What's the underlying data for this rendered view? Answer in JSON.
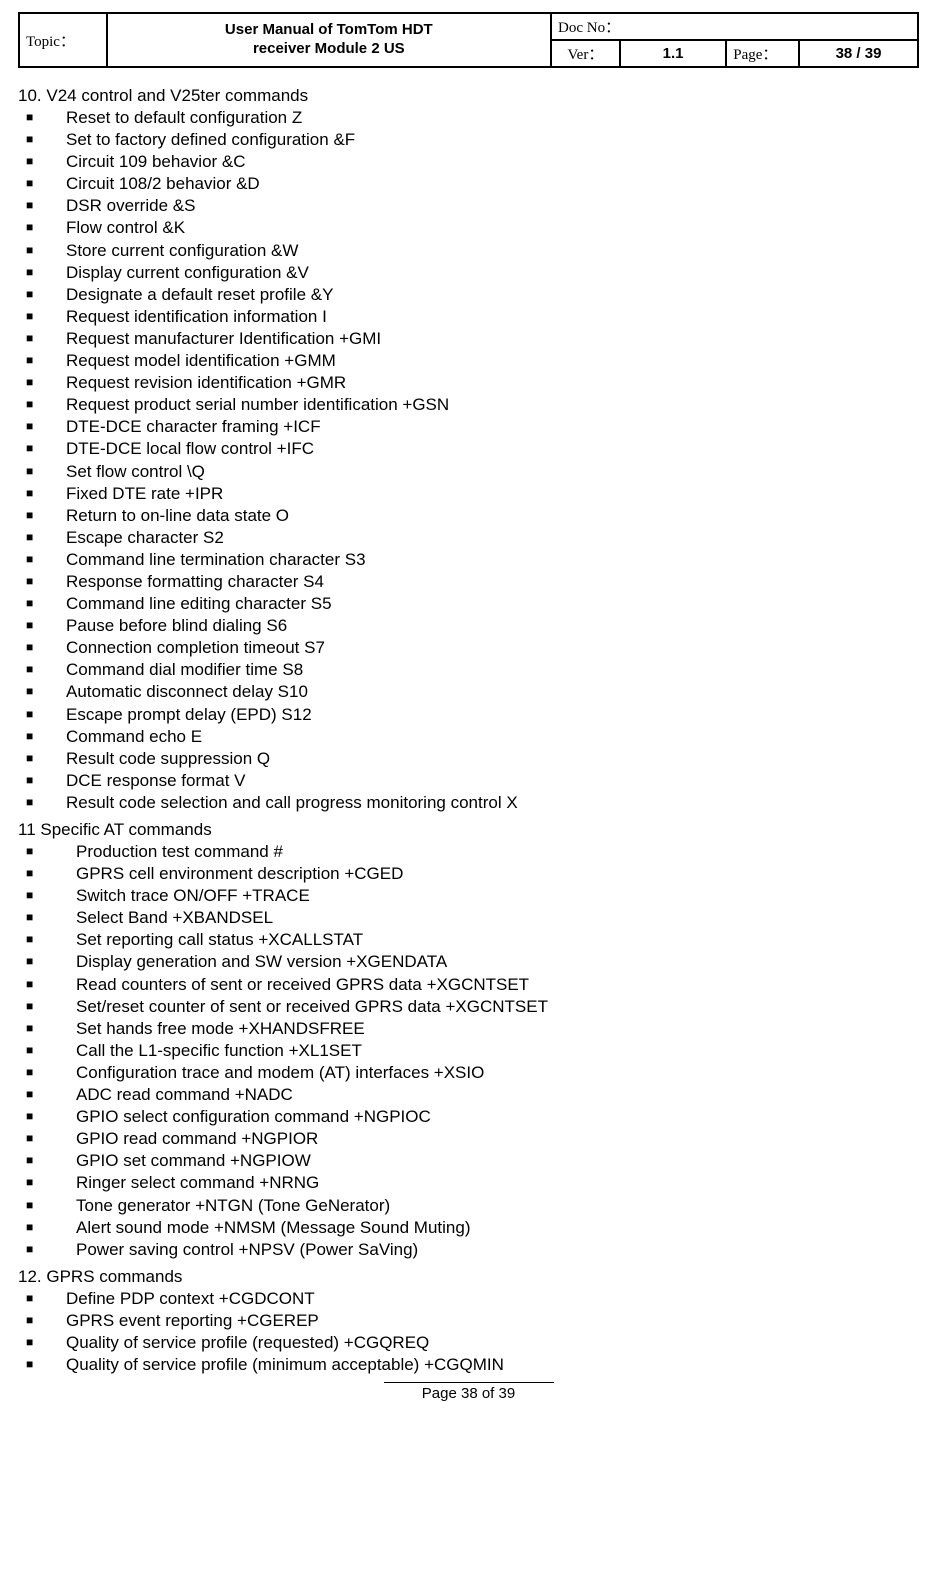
{
  "header": {
    "topic_label": "Topic：",
    "title_line1": "User Manual of TomTom HDT",
    "title_line2": "receiver  Module 2 US",
    "docno_label": "Doc No：",
    "docno_value": "",
    "ver_label": "Ver：",
    "ver_value": "1.1",
    "page_label": "Page：",
    "page_value": "38 / 39"
  },
  "section10": {
    "title": "10. V24 control and V25ter commands",
    "items": [
      "Reset to default configuration Z",
      "Set to factory defined configuration &F",
      "Circuit 109 behavior &C",
      "Circuit 108/2 behavior &D",
      "DSR override &S",
      "Flow control &K",
      "Store current configuration &W",
      "Display current configuration &V",
      "Designate a default reset profile &Y",
      "Request identification information I",
      "Request manufacturer Identification +GMI",
      "Request model identification +GMM",
      "Request revision identification +GMR",
      "Request product serial number identification +GSN",
      "DTE-DCE character framing +ICF",
      "DTE-DCE local flow control +IFC",
      "Set flow control \\Q",
      "Fixed DTE rate +IPR",
      "Return to on-line data state O",
      "Escape character S2",
      "Command line termination character S3",
      "Response formatting character S4",
      "Command line editing character S5",
      "Pause before blind dialing S6",
      "Connection completion timeout S7",
      "Command dial modifier time S8",
      "Automatic disconnect delay S10",
      "Escape prompt delay (EPD) S12",
      "Command echo E",
      "Result code suppression Q",
      "DCE response format V",
      "Result code selection and call progress monitoring control X"
    ]
  },
  "section11": {
    "title": "11 Specific AT commands",
    "items": [
      "Production test command #",
      "GPRS cell environment description +CGED",
      "Switch trace ON/OFF +TRACE",
      "Select Band +XBANDSEL",
      "Set reporting call status +XCALLSTAT",
      "Display generation and SW version +XGENDATA",
      "Read counters of sent or received GPRS data +XGCNTSET",
      "Set/reset counter of sent or received GPRS data +XGCNTSET",
      "Set hands free mode +XHANDSFREE",
      "Call the L1-specific function +XL1SET",
      "Configuration trace and modem (AT) interfaces +XSIO",
      "ADC read command +NADC",
      "GPIO select configuration command +NGPIOC",
      "GPIO read command +NGPIOR",
      "GPIO set command +NGPIOW",
      "Ringer select command +NRNG",
      "Tone generator +NTGN (Tone GeNerator)",
      "Alert sound mode +NMSM (Message Sound Muting)",
      "Power saving control +NPSV (Power SaVing)"
    ]
  },
  "section12": {
    "title": "12. GPRS commands",
    "items": [
      "Define PDP context +CGDCONT",
      "GPRS event reporting +CGEREP",
      "Quality of service profile (requested) +CGQREQ",
      "Quality of service profile (minimum acceptable) +CGQMIN"
    ]
  },
  "footer": {
    "text": "Page 38 of 39"
  }
}
